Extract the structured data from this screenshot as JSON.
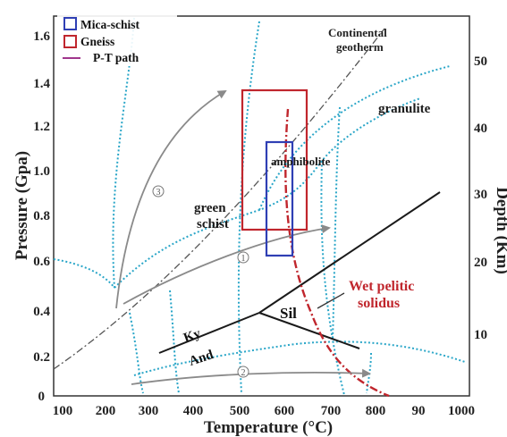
{
  "axes": {
    "x_title": "Temperature (°C)",
    "y_left_title": "Pressure (Gpa)",
    "y_right_title": "Depth (Km)",
    "x_ticks": [
      "100",
      "200",
      "300",
      "400",
      "500",
      "600",
      "700",
      "800",
      "90",
      "1000"
    ],
    "y_left_ticks": [
      "0",
      "0.2",
      "0.4",
      "0.6",
      "0.8",
      "1.0",
      "1.2",
      "1.4",
      "1.6"
    ],
    "y_right_ticks": [
      "10",
      "20",
      "30",
      "40",
      "50"
    ]
  },
  "legend": {
    "items": [
      {
        "label": "Mica-schist",
        "color": "#2f3fb4"
      },
      {
        "label": "Gneiss",
        "color": "#c0262d"
      },
      {
        "label": "P-T path",
        "color": "#a0368c"
      }
    ]
  },
  "labels": {
    "continental_geotherm_line1": "Continental",
    "continental_geotherm_line2": "geotherm",
    "granulite": "granulite",
    "amphibolite": "amphibolite",
    "green_line1": "green",
    "green_line2": "schist",
    "wet_solidus_line1": "Wet pelitic",
    "wet_solidus_line2": "solidus",
    "ky": "Ky",
    "and": "And",
    "sil": "Sil",
    "path1": "1",
    "path2": "2",
    "path3": "3"
  },
  "colors": {
    "facies_boundary": "#2aa6c8",
    "arrows": "#8a8a8a",
    "solidus": "#c0262d",
    "aluminosilicate": "#1a1a1a",
    "geotherm": "#555555"
  }
}
